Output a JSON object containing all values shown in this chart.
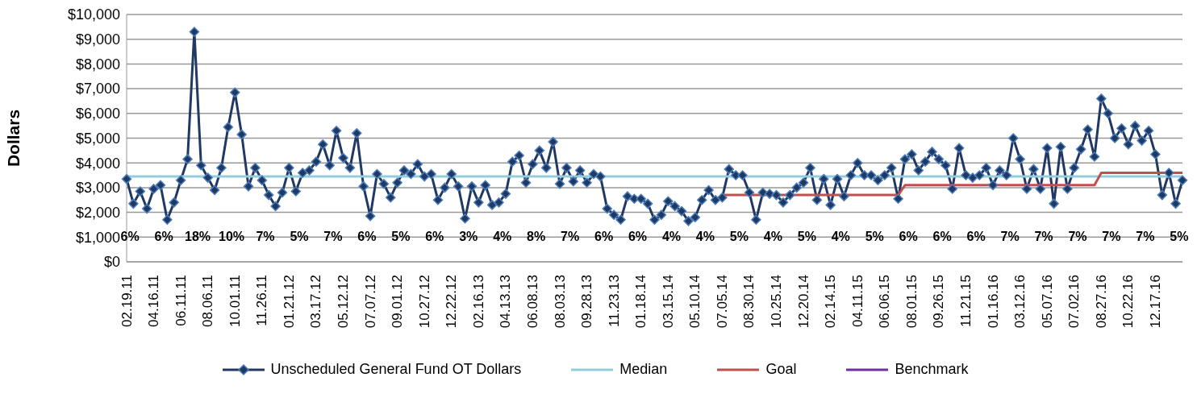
{
  "chart_data": {
    "type": "line",
    "ylabel": "Dollars",
    "categories": [
      "02.19.11",
      null,
      null,
      null,
      "04.16.11",
      null,
      null,
      null,
      "06.11.11",
      null,
      null,
      null,
      "08.06.11",
      null,
      null,
      null,
      "10.01.11",
      null,
      null,
      null,
      "11.26.11",
      null,
      null,
      null,
      "01.21.12",
      null,
      null,
      null,
      "03.17.12",
      null,
      null,
      null,
      "05.12.12",
      null,
      null,
      null,
      "07.07.12",
      null,
      null,
      null,
      "09.01.12",
      null,
      null,
      null,
      "10.27.12",
      null,
      null,
      null,
      "12.22.12",
      null,
      null,
      null,
      "02.16.13",
      null,
      null,
      null,
      "04.13.13",
      null,
      null,
      null,
      "06.08.13",
      null,
      null,
      null,
      "08.03.13",
      null,
      null,
      null,
      "09.28.13",
      null,
      null,
      null,
      "11.23.13",
      null,
      null,
      null,
      "01.18.14",
      null,
      null,
      null,
      "03.15.14",
      null,
      null,
      null,
      "05.10.14",
      null,
      null,
      null,
      "07.05.14",
      null,
      null,
      null,
      "08.30.14",
      null,
      null,
      null,
      "10.25.14",
      null,
      null,
      null,
      "12.20.14",
      null,
      null,
      null,
      "02.14.15",
      null,
      null,
      null,
      "04.11.15",
      null,
      null,
      null,
      "06.06.15",
      null,
      null,
      null,
      "08.01.15",
      null,
      null,
      null,
      "09.26.15",
      null,
      null,
      null,
      "11.21.15",
      null,
      null,
      null,
      "01.16.16",
      null,
      null,
      null,
      "03.12.16",
      null,
      null,
      null,
      "05.07.16",
      null,
      null,
      null,
      "07.02.16",
      null,
      null,
      null,
      "08.27.16",
      null,
      null,
      null,
      "10.22.16",
      null,
      null,
      null,
      "12.17.16",
      null,
      null,
      null,
      null
    ],
    "series": [
      {
        "name": "Unscheduled General Fund OT Dollars",
        "color": "#1f3864",
        "marker": "diamond",
        "values": [
          3350,
          2350,
          2850,
          2150,
          2950,
          3100,
          1700,
          2400,
          3300,
          4150,
          9300,
          3900,
          3400,
          2900,
          3800,
          5450,
          6850,
          5150,
          3050,
          3800,
          3300,
          2700,
          2250,
          2800,
          3800,
          2850,
          3600,
          3700,
          4050,
          4750,
          3900,
          5300,
          4200,
          3800,
          5200,
          3050,
          1850,
          3550,
          3150,
          2600,
          3200,
          3700,
          3550,
          3950,
          3450,
          3550,
          2500,
          3000,
          3550,
          3050,
          1750,
          3050,
          2400,
          3100,
          2300,
          2400,
          2750,
          4050,
          4300,
          3200,
          3950,
          4500,
          3800,
          4850,
          3150,
          3800,
          3250,
          3700,
          3200,
          3550,
          3450,
          2150,
          1900,
          1700,
          2650,
          2550,
          2550,
          2350,
          1700,
          1900,
          2450,
          2250,
          2050,
          1650,
          1800,
          2500,
          2900,
          2500,
          2600,
          3750,
          3500,
          3500,
          2800,
          1700,
          2800,
          2750,
          2700,
          2400,
          2700,
          3000,
          3200,
          3800,
          2500,
          3350,
          2300,
          3350,
          2650,
          3500,
          4000,
          3500,
          3500,
          3300,
          3500,
          3800,
          2550,
          4150,
          4350,
          3700,
          4050,
          4450,
          4150,
          3900,
          2950,
          4600,
          3500,
          3400,
          3500,
          3800,
          3100,
          3700,
          3500,
          5000,
          4150,
          2950,
          3750,
          2950,
          4600,
          2350,
          4650,
          2950,
          3800,
          4550,
          5350,
          4250,
          6600,
          6000,
          5000,
          5400,
          4750,
          5500,
          4900,
          5300,
          4350,
          2700,
          3600,
          2350,
          3300
        ]
      },
      {
        "name": "Median",
        "color": "#93cddd",
        "marker": "none",
        "values": [
          3450,
          3450,
          3450,
          3450,
          3450,
          3450,
          3450,
          3450,
          3450,
          3450,
          3450,
          3450,
          3450,
          3450,
          3450,
          3450,
          3450,
          3450,
          3450,
          3450,
          3450,
          3450,
          3450,
          3450,
          3450,
          3450,
          3450,
          3450,
          3450,
          3450,
          3450,
          3450,
          3450,
          3450,
          3450,
          3450,
          3450,
          3450,
          3450,
          3450,
          3450,
          3450,
          3450,
          3450,
          3450,
          3450,
          3450,
          3450,
          3450,
          3450,
          3450,
          3450,
          3450,
          3450,
          3450,
          3450,
          3450,
          3450,
          3450,
          3450,
          3450,
          3450,
          3450,
          3450,
          3450,
          3450,
          3450,
          3450,
          3450,
          3450,
          3450,
          3450,
          3450,
          3450,
          3450,
          3450,
          3450,
          3450,
          3450,
          3450,
          3450,
          3450,
          3450,
          3450,
          3450,
          3450,
          3450,
          3450,
          3450,
          3450,
          3450,
          3450,
          3450,
          3450,
          3450,
          3450,
          3450,
          3450,
          3450,
          3450,
          3450,
          3450,
          3450,
          3450,
          3450,
          3450,
          3450,
          3450,
          3450,
          3450,
          3450,
          3450,
          3450,
          3450,
          3450,
          3450,
          3450,
          3450,
          3450,
          3450,
          3450,
          3450,
          3450,
          3450,
          3450,
          3450,
          3450,
          3450,
          3450,
          3450,
          3450,
          3450,
          3450,
          3450,
          3450,
          3450,
          3450,
          3450,
          3450,
          3450,
          3450,
          3450,
          3450,
          3450,
          3450,
          3450,
          3450,
          3450,
          3450,
          3450,
          3450,
          3450,
          3450,
          3450,
          3450,
          3450,
          3450
        ]
      },
      {
        "name": "Goal",
        "color": "#c0504d",
        "marker": "none",
        "values": [
          null,
          null,
          null,
          null,
          null,
          null,
          null,
          null,
          null,
          null,
          null,
          null,
          null,
          null,
          null,
          null,
          null,
          null,
          null,
          null,
          null,
          null,
          null,
          null,
          null,
          null,
          null,
          null,
          null,
          null,
          null,
          null,
          null,
          null,
          null,
          null,
          null,
          null,
          null,
          null,
          null,
          null,
          null,
          null,
          null,
          null,
          null,
          null,
          null,
          null,
          null,
          null,
          null,
          null,
          null,
          null,
          null,
          null,
          null,
          null,
          null,
          null,
          null,
          null,
          null,
          null,
          null,
          null,
          null,
          null,
          null,
          null,
          null,
          null,
          null,
          null,
          null,
          null,
          null,
          null,
          null,
          null,
          null,
          null,
          null,
          null,
          null,
          null,
          2700,
          2700,
          2700,
          2700,
          2700,
          2700,
          2700,
          2700,
          2700,
          2700,
          2700,
          2700,
          2700,
          2700,
          2700,
          2700,
          2700,
          2700,
          2700,
          2700,
          2700,
          2700,
          2700,
          2700,
          2700,
          2700,
          2700,
          3100,
          3100,
          3100,
          3100,
          3100,
          3100,
          3100,
          3100,
          3100,
          3100,
          3100,
          3100,
          3100,
          3100,
          3100,
          3100,
          3100,
          3100,
          3100,
          3100,
          3100,
          3100,
          3100,
          3100,
          3100,
          3100,
          3100,
          3100,
          3100,
          3600,
          3600,
          3600,
          3600,
          3600,
          3600,
          3600,
          3600,
          3600,
          3600,
          3600,
          3600,
          3600
        ]
      },
      {
        "name": "Benchmark",
        "color": "#7030a0",
        "marker": "none",
        "values": [
          null,
          null,
          null,
          null,
          null,
          null,
          null,
          null,
          null,
          null,
          null,
          null,
          null,
          null,
          null,
          null,
          null,
          null,
          null,
          null,
          null,
          null,
          null,
          null,
          null,
          null,
          null,
          null,
          null,
          null,
          null,
          null,
          null,
          null,
          null,
          null,
          null,
          null,
          null,
          null,
          null,
          null,
          null,
          null,
          null,
          null,
          null,
          null,
          null,
          null,
          null,
          null,
          null,
          null,
          null,
          null,
          null,
          null,
          null,
          null,
          null,
          null,
          null,
          null,
          null,
          null,
          null,
          null,
          null,
          null,
          null,
          null,
          null,
          null,
          null,
          null,
          null,
          null,
          null,
          null,
          null,
          null,
          null,
          null,
          null,
          null,
          null,
          null,
          null,
          null,
          null,
          null,
          null,
          null,
          null,
          null,
          null,
          null,
          null,
          null,
          null,
          null,
          null,
          null,
          null,
          null,
          null,
          null,
          null,
          null,
          null,
          null,
          null,
          null,
          null,
          null,
          null,
          null,
          null,
          null,
          null,
          null,
          null,
          null,
          null,
          null,
          null,
          null,
          null,
          null,
          null,
          null,
          null,
          null,
          null,
          null,
          null,
          null,
          null,
          null,
          null,
          null,
          null,
          null,
          null,
          null,
          null,
          null,
          null,
          null,
          null,
          null,
          null,
          null,
          null,
          null,
          null
        ]
      }
    ],
    "ylim": [
      0,
      10000
    ],
    "yticks": [
      {
        "value": 0,
        "label": "$0"
      },
      {
        "value": 1000,
        "label": "$1,000"
      },
      {
        "value": 2000,
        "label": "$2,000"
      },
      {
        "value": 3000,
        "label": "$3,000"
      },
      {
        "value": 4000,
        "label": "$4,000"
      },
      {
        "value": 5000,
        "label": "$5,000"
      },
      {
        "value": 6000,
        "label": "$6,000"
      },
      {
        "value": 7000,
        "label": "$7,000"
      },
      {
        "value": 8000,
        "label": "$8,000"
      },
      {
        "value": 9000,
        "label": "$9,000"
      },
      {
        "value": 10000,
        "label": "$10,000"
      }
    ],
    "grid": "y",
    "legend": "bottom",
    "line_style": "solid",
    "annotations": [
      "6%",
      "6%",
      "18%",
      "10%",
      "7%",
      "5%",
      "7%",
      "6%",
      "5%",
      "6%",
      "3%",
      "4%",
      "8%",
      "7%",
      "6%",
      "6%",
      "4%",
      "4%",
      "5%",
      "4%",
      "5%",
      "4%",
      "5%",
      "6%",
      "6%",
      "6%",
      "7%",
      "7%",
      "7%",
      "7%",
      "7%",
      "5%"
    ]
  }
}
